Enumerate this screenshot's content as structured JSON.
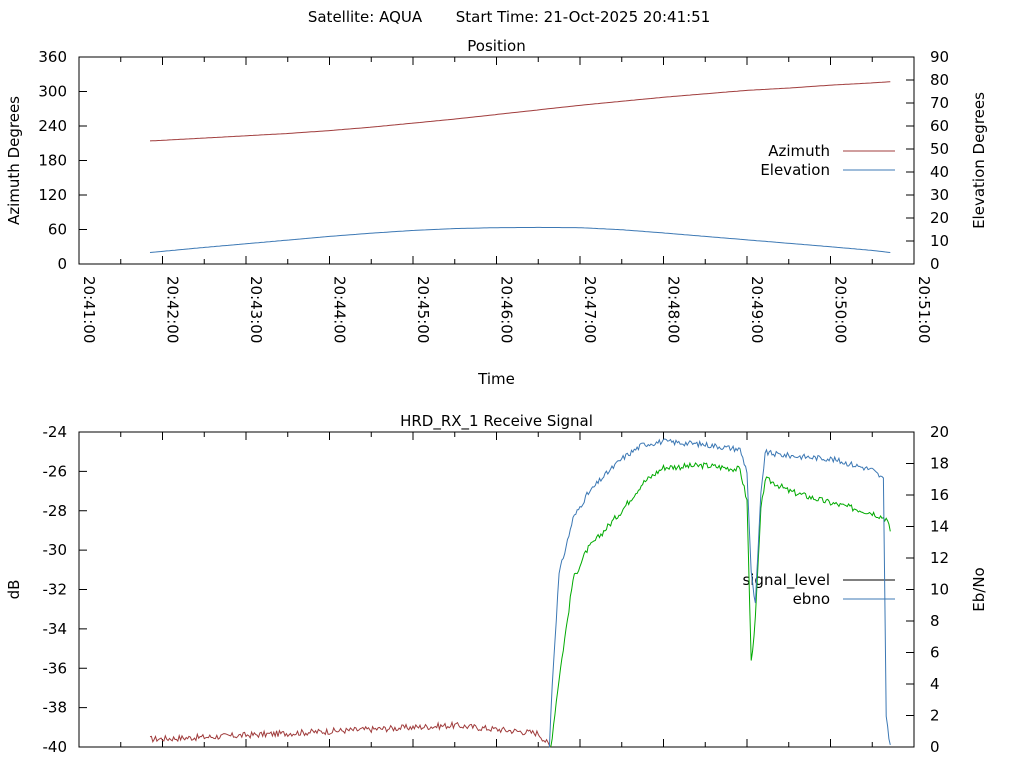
{
  "header": {
    "satellite_label": "Satellite: AQUA",
    "start_time_label": "Start Time: 21-Oct-2025 20:41:51"
  },
  "colors": {
    "azimuth": "#a03c3c",
    "elevation": "#3c78b4",
    "signal_level": "#000000",
    "signal_low": "#a03c3c",
    "signal_high": "#00aa00",
    "ebno": "#3c78b4"
  },
  "chart_data": [
    {
      "type": "line",
      "title": "Position",
      "xlabel": "Time",
      "ylabel": "Azimuth Degrees",
      "y2label": "Elevation Degrees",
      "x_ticks": [
        "20:41:00",
        "20:42:00",
        "20:43:00",
        "20:44:00",
        "20:45:00",
        "20:46:00",
        "20:47:00",
        "20:48:00",
        "20:49:00",
        "20:50:00",
        "20:51:00"
      ],
      "y_ticks": [
        "0",
        "60",
        "120",
        "180",
        "240",
        "300",
        "360"
      ],
      "y2_ticks": [
        "0",
        "10",
        "20",
        "30",
        "40",
        "50",
        "60",
        "70",
        "80",
        "90"
      ],
      "ylim": [
        0,
        360
      ],
      "y2lim": [
        0,
        90
      ],
      "xlim": [
        "20:41:00",
        "20:51:00"
      ],
      "legend_position": "right",
      "series": [
        {
          "name": "Azimuth",
          "axis": "y",
          "x": [
            "20:41:51",
            "20:42:30",
            "20:43:00",
            "20:43:30",
            "20:44:00",
            "20:44:30",
            "20:45:00",
            "20:45:30",
            "20:46:00",
            "20:46:30",
            "20:47:00",
            "20:47:30",
            "20:48:00",
            "20:48:30",
            "20:49:00",
            "20:49:30",
            "20:50:00",
            "20:50:30",
            "20:50:43"
          ],
          "values": [
            214,
            219,
            223,
            227,
            232,
            238,
            245,
            252,
            260,
            268,
            276,
            283,
            290,
            296,
            302,
            306,
            311,
            315,
            317
          ]
        },
        {
          "name": "Elevation",
          "axis": "y2",
          "x": [
            "20:41:51",
            "20:42:30",
            "20:43:00",
            "20:43:30",
            "20:44:00",
            "20:44:30",
            "20:45:00",
            "20:45:30",
            "20:46:00",
            "20:46:30",
            "20:47:00",
            "20:47:30",
            "20:48:00",
            "20:48:30",
            "20:49:00",
            "20:49:30",
            "20:50:00",
            "20:50:30",
            "20:50:43"
          ],
          "values": [
            5,
            7.2,
            8.8,
            10.4,
            12.0,
            13.4,
            14.6,
            15.4,
            15.8,
            15.9,
            15.8,
            14.9,
            13.5,
            12.0,
            10.5,
            9.0,
            7.5,
            5.9,
            5
          ]
        }
      ]
    },
    {
      "type": "line",
      "title": "HRD_RX_1 Receive Signal",
      "ylabel": "dB",
      "y2label": "Eb/No",
      "y_ticks": [
        "-40",
        "-38",
        "-36",
        "-34",
        "-32",
        "-30",
        "-28",
        "-26",
        "-24"
      ],
      "y2_ticks": [
        "0",
        "2",
        "4",
        "6",
        "8",
        "10",
        "12",
        "14",
        "16",
        "18",
        "20"
      ],
      "ylim": [
        -40,
        -24
      ],
      "y2lim": [
        0,
        20
      ],
      "xlim": [
        "20:41:00",
        "20:51:00"
      ],
      "legend_position": "right",
      "series": [
        {
          "name": "signal_level",
          "axis": "y",
          "x": [
            "20:41:51",
            "20:42:30",
            "20:43:00",
            "20:43:30",
            "20:44:00",
            "20:44:30",
            "20:45:00",
            "20:45:30",
            "20:46:00",
            "20:46:30",
            "20:46:39",
            "20:46:45",
            "20:46:55",
            "20:47:05",
            "20:47:15",
            "20:47:30",
            "20:47:45",
            "20:48:00",
            "20:48:30",
            "20:48:55",
            "20:49:00",
            "20:49:03",
            "20:49:06",
            "20:49:10",
            "20:49:13",
            "20:49:20",
            "20:49:30",
            "20:50:00",
            "20:50:30",
            "20:50:40",
            "20:50:43"
          ],
          "values": [
            -39.6,
            -39.5,
            -39.4,
            -39.3,
            -39.2,
            -39.1,
            -39.0,
            -38.9,
            -39.1,
            -39.3,
            -40.0,
            -36.5,
            -31.5,
            -30.0,
            -29.2,
            -28.0,
            -26.6,
            -25.8,
            -25.7,
            -25.9,
            -27.5,
            -35.7,
            -33.5,
            -28.0,
            -26.4,
            -26.6,
            -27.0,
            -27.6,
            -28.1,
            -28.4,
            -29.0
          ]
        },
        {
          "name": "ebno",
          "axis": "y2",
          "x": [
            "20:46:38",
            "20:46:40",
            "20:46:45",
            "20:46:55",
            "20:47:05",
            "20:47:15",
            "20:47:30",
            "20:47:45",
            "20:48:00",
            "20:48:30",
            "20:48:55",
            "20:49:00",
            "20:49:03",
            "20:49:06",
            "20:49:10",
            "20:49:13",
            "20:49:20",
            "20:49:30",
            "20:50:00",
            "20:50:30",
            "20:50:38",
            "20:50:40",
            "20:50:43"
          ],
          "values": [
            0,
            4.0,
            11.0,
            14.5,
            16.0,
            17.0,
            18.3,
            19.2,
            19.4,
            19.2,
            18.9,
            17.5,
            11.0,
            9.0,
            16.0,
            18.7,
            18.6,
            18.5,
            18.3,
            17.6,
            17.0,
            2.0,
            0
          ]
        }
      ]
    }
  ]
}
